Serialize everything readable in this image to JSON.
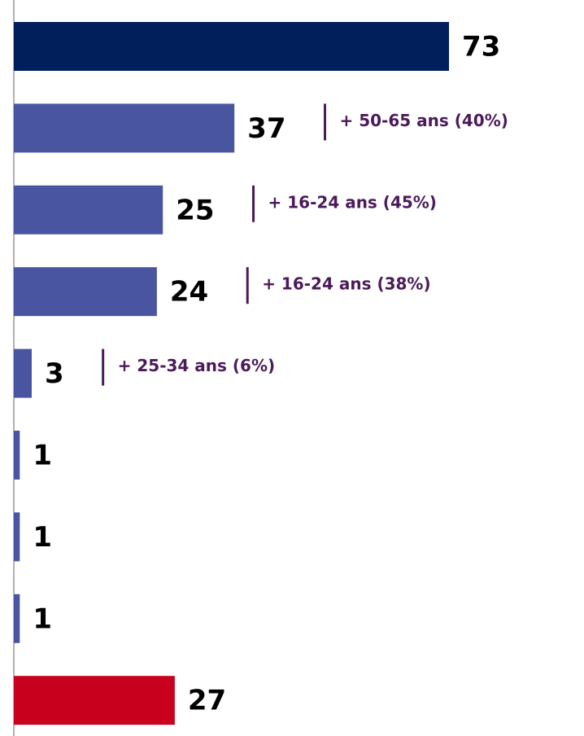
{
  "chart_data": {
    "type": "hbar",
    "categories": [
      null,
      null,
      null,
      null,
      null,
      null,
      null,
      null,
      null
    ],
    "values": [
      73,
      37,
      25,
      24,
      3,
      1,
      1,
      1,
      27
    ],
    "colors": [
      "#001f5b",
      "#4a55a2",
      "#4a55a2",
      "#4a55a2",
      "#4a55a2",
      "#4a55a2",
      "#4a55a2",
      "#4a55a2",
      "#c8001e"
    ],
    "annotations": [
      null,
      "+ 50-65 ans (40%)",
      "+ 16-24 ans (45%)",
      "+ 16-24 ans (38%)",
      "+ 25-34 ans (6%)",
      null,
      null,
      null,
      null
    ]
  }
}
